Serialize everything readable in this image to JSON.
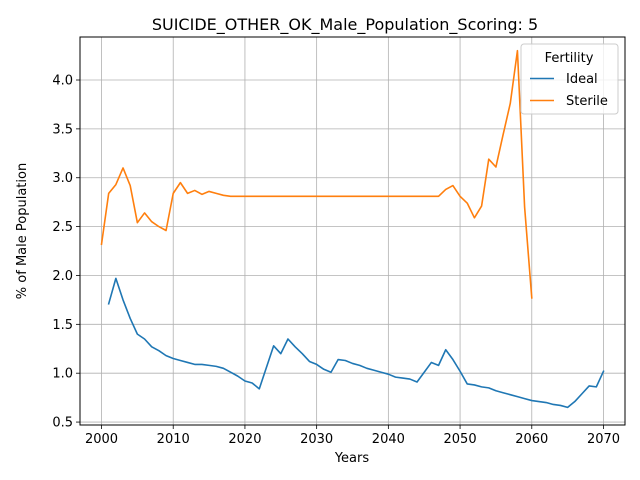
{
  "chart_data": {
    "type": "line",
    "title": "SUICIDE_OTHER_OK_Male_Population_Scoring: 5",
    "xlabel": "Years",
    "ylabel": "% of Male Population",
    "xlim": [
      1997,
      2073
    ],
    "ylim": [
      0.47,
      4.44
    ],
    "xticks": [
      2000,
      2010,
      2020,
      2030,
      2040,
      2050,
      2060,
      2070
    ],
    "yticks": [
      0.5,
      1.0,
      1.5,
      2.0,
      2.5,
      3.0,
      3.5,
      4.0
    ],
    "grid": true,
    "legend": {
      "title": "Fertility",
      "placement": "top-right"
    },
    "series": [
      {
        "name": "Ideal",
        "color": "#1f77b4",
        "x": [
          2001,
          2002,
          2003,
          2004,
          2005,
          2006,
          2007,
          2008,
          2009,
          2010,
          2011,
          2012,
          2013,
          2014,
          2015,
          2016,
          2017,
          2018,
          2019,
          2020,
          2021,
          2022,
          2023,
          2024,
          2025,
          2026,
          2027,
          2028,
          2029,
          2030,
          2031,
          2032,
          2033,
          2034,
          2035,
          2036,
          2037,
          2038,
          2039,
          2040,
          2041,
          2042,
          2043,
          2044,
          2045,
          2046,
          2047,
          2048,
          2049,
          2050,
          2051,
          2052,
          2053,
          2054,
          2055,
          2056,
          2057,
          2058,
          2059,
          2060,
          2061,
          2062,
          2063,
          2064,
          2065,
          2066,
          2067,
          2068,
          2069,
          2070
        ],
        "values": [
          1.71,
          1.97,
          1.75,
          1.56,
          1.4,
          1.35,
          1.27,
          1.23,
          1.18,
          1.15,
          1.13,
          1.11,
          1.09,
          1.09,
          1.08,
          1.07,
          1.05,
          1.01,
          0.97,
          0.92,
          0.9,
          0.84,
          1.06,
          1.28,
          1.2,
          1.35,
          1.27,
          1.2,
          1.12,
          1.09,
          1.04,
          1.01,
          1.14,
          1.13,
          1.1,
          1.08,
          1.05,
          1.03,
          1.01,
          0.99,
          0.96,
          0.95,
          0.94,
          0.91,
          1.01,
          1.11,
          1.08,
          1.24,
          1.14,
          1.02,
          0.89,
          0.88,
          0.86,
          0.85,
          0.82,
          0.8,
          0.78,
          0.76,
          0.74,
          0.72,
          0.71,
          0.7,
          0.68,
          0.67,
          0.65,
          0.71,
          0.79,
          0.87,
          0.86,
          1.02
        ]
      },
      {
        "name": "Sterile",
        "color": "#ff7f0e",
        "x": [
          2000,
          2001,
          2002,
          2003,
          2004,
          2005,
          2006,
          2007,
          2008,
          2009,
          2010,
          2011,
          2012,
          2013,
          2014,
          2015,
          2016,
          2017,
          2018,
          2019,
          2020,
          2025,
          2030,
          2035,
          2040,
          2045,
          2047,
          2048,
          2049,
          2050,
          2051,
          2052,
          2053,
          2054,
          2055,
          2056,
          2057,
          2058,
          2059,
          2060
        ],
        "values": [
          2.32,
          2.84,
          2.93,
          3.1,
          2.92,
          2.54,
          2.64,
          2.55,
          2.5,
          2.46,
          2.84,
          2.95,
          2.84,
          2.87,
          2.83,
          2.86,
          2.84,
          2.82,
          2.81,
          2.81,
          2.81,
          2.81,
          2.81,
          2.81,
          2.81,
          2.81,
          2.81,
          2.88,
          2.92,
          2.81,
          2.74,
          2.59,
          2.71,
          3.19,
          3.11,
          3.44,
          3.76,
          4.3,
          2.7,
          1.77
        ]
      }
    ]
  }
}
